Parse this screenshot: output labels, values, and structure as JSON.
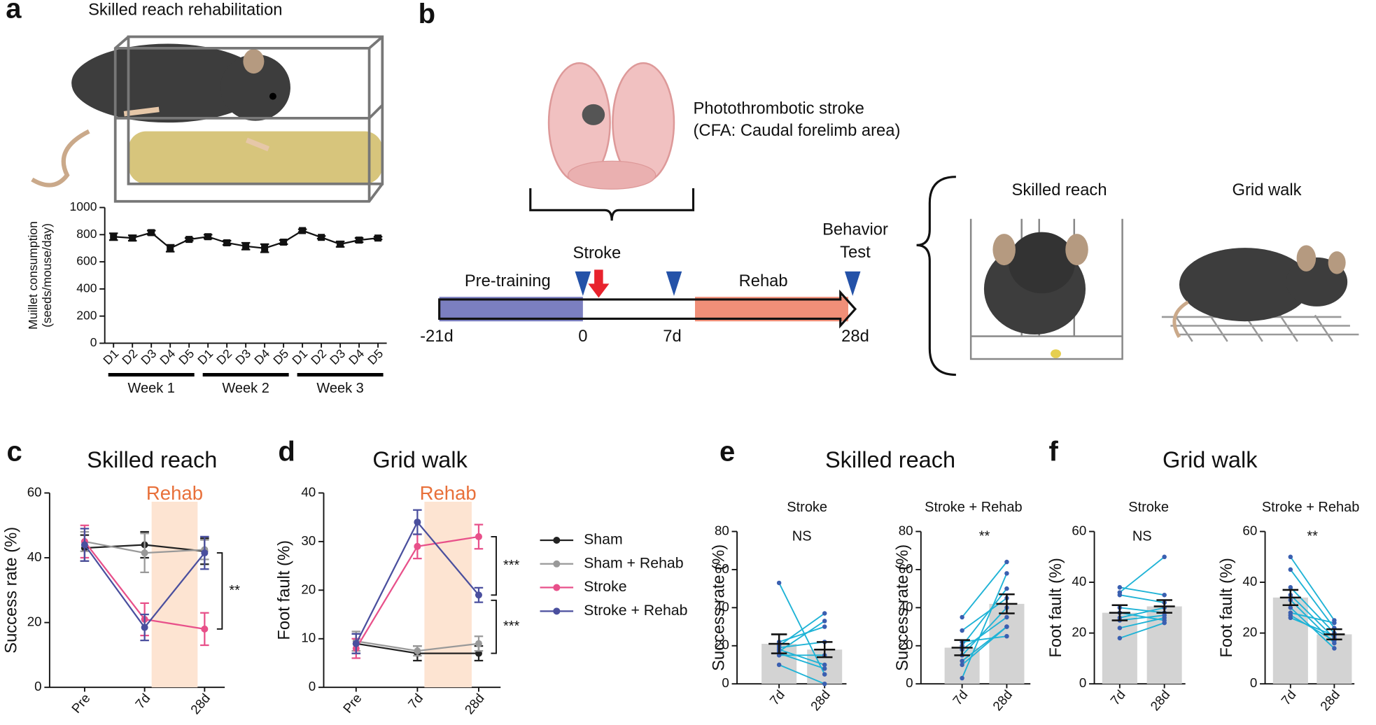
{
  "panel_labels": [
    "a",
    "b",
    "c",
    "d",
    "e",
    "f"
  ],
  "diagram": {
    "brain_label": [
      "Photothrombotic stroke",
      "(CFA: Caudal forelimb area)"
    ],
    "phases": [
      "Pre-training",
      "Rehab"
    ],
    "days": [
      "-21d",
      "0",
      "7d",
      "28d"
    ],
    "event": "Stroke",
    "test": [
      "Behavior",
      "Test"
    ],
    "tests": [
      "Skilled reach",
      "Grid walk"
    ]
  },
  "chart_data": [
    {
      "type": "line",
      "title": "Skilled reach rehabilitation",
      "ylabel": [
        "Muillet consumption",
        "(seeds/mouse/day)"
      ],
      "categories": [
        "D1",
        "D2",
        "D3",
        "D4",
        "D5",
        "D1",
        "D2",
        "D3",
        "D4",
        "D5",
        "D1",
        "D2",
        "D3",
        "D4",
        "D5"
      ],
      "groups": [
        "Week 1",
        "Week 2",
        "Week 3"
      ],
      "values": [
        785,
        775,
        815,
        700,
        765,
        785,
        740,
        715,
        700,
        745,
        830,
        780,
        730,
        760,
        775
      ],
      "errors": [
        25,
        20,
        15,
        25,
        10,
        15,
        15,
        25,
        30,
        15,
        10,
        10,
        20,
        15,
        10
      ],
      "color": "#111111",
      "marker": "square",
      "ylim": [
        0,
        1000
      ],
      "yticks": [
        0,
        200,
        400,
        600,
        800,
        1000
      ]
    },
    {
      "type": "line",
      "title": "Skilled reach",
      "ylabel": "Success rate (%)",
      "shade_label": "Rehab",
      "shade_color": "#fde4d2",
      "shade_text_color": "#e8703a",
      "categories": [
        "Pre",
        "7d",
        "28d"
      ],
      "ylim": [
        0,
        60
      ],
      "yticks": [
        0,
        20,
        40,
        60
      ],
      "series": [
        {
          "name": "Sham",
          "color": "#222222",
          "values": [
            43,
            44,
            42
          ],
          "errors": [
            4,
            4,
            4
          ]
        },
        {
          "name": "Sham + Rehab",
          "color": "#999999",
          "values": [
            45,
            41.5,
            42.5
          ],
          "errors": [
            3,
            6,
            3
          ]
        },
        {
          "name": "Stroke",
          "color": "#e8508a",
          "values": [
            45,
            21,
            18
          ],
          "errors": [
            5,
            5,
            5
          ]
        },
        {
          "name": "Stroke + Rehab",
          "color": "#4a4f9e",
          "values": [
            44,
            18.5,
            41.5
          ],
          "errors": [
            5,
            4,
            5
          ]
        }
      ],
      "annotations": [
        {
          "text": "**",
          "between": [
            "Stroke + Rehab",
            "Stroke"
          ]
        }
      ]
    },
    {
      "type": "line",
      "title": "Grid walk",
      "ylabel": "Foot fault (%)",
      "shade_label": "Rehab",
      "shade_color": "#fde4d2",
      "shade_text_color": "#e8703a",
      "categories": [
        "Pre",
        "7d",
        "28d"
      ],
      "ylim": [
        0,
        40
      ],
      "yticks": [
        0,
        10,
        20,
        30,
        40
      ],
      "legend": "right",
      "series": [
        {
          "name": "Sham",
          "color": "#222222",
          "values": [
            9,
            7,
            7
          ],
          "errors": [
            2,
            1.5,
            1.5
          ]
        },
        {
          "name": "Sham + Rehab",
          "color": "#999999",
          "values": [
            9.5,
            7.5,
            9
          ],
          "errors": [
            2,
            1,
            1.5
          ]
        },
        {
          "name": "Stroke",
          "color": "#e8508a",
          "values": [
            8,
            29,
            31
          ],
          "errors": [
            2,
            2.5,
            2.5
          ]
        },
        {
          "name": "Stroke + Rehab",
          "color": "#4a4f9e",
          "values": [
            9,
            34,
            19
          ],
          "errors": [
            2,
            2.5,
            1.5
          ]
        }
      ],
      "annotations": [
        {
          "text": "***",
          "between": [
            "Stroke",
            "Stroke + Rehab"
          ]
        },
        {
          "text": "***",
          "between": [
            "Stroke + Rehab",
            "Sham"
          ]
        }
      ]
    },
    {
      "type": "paired_bar",
      "panel_title": "Skilled reach",
      "title": "Stroke",
      "ylabel": "Success rate (%)",
      "annotation": "NS",
      "categories": [
        "7d",
        "28d"
      ],
      "values": [
        21,
        18
      ],
      "errors": [
        5,
        4
      ],
      "bar_color": "#d3d3d3",
      "pair_color": "#1fb3d6",
      "point_color": "#3a5fb0",
      "pairs": [
        [
          53,
          5
        ],
        [
          20,
          37
        ],
        [
          17,
          33
        ],
        [
          19,
          22
        ],
        [
          15,
          15
        ],
        [
          10,
          0
        ],
        [
          22,
          30
        ],
        [
          18,
          10
        ],
        [
          16,
          8
        ]
      ],
      "ylim": [
        0,
        80
      ],
      "yticks": [
        0,
        20,
        40,
        60,
        80
      ]
    },
    {
      "type": "paired_bar",
      "title": "Stroke + Rehab",
      "ylabel": "Success rate (%)",
      "annotation": "**",
      "categories": [
        "7d",
        "28d"
      ],
      "values": [
        19,
        42
      ],
      "errors": [
        4,
        5
      ],
      "bar_color": "#d3d3d3",
      "pair_color": "#1fb3d6",
      "point_color": "#3a5fb0",
      "pairs": [
        [
          35,
          64
        ],
        [
          3,
          58
        ],
        [
          20,
          50
        ],
        [
          28,
          45
        ],
        [
          15,
          40
        ],
        [
          18,
          35
        ],
        [
          10,
          30
        ],
        [
          22,
          25
        ],
        [
          12,
          30
        ]
      ],
      "ylim": [
        0,
        80
      ],
      "yticks": [
        0,
        20,
        40,
        60,
        80
      ]
    },
    {
      "type": "paired_bar",
      "panel_title": "Grid walk",
      "title": "Stroke",
      "ylabel": "Foot fault (%)",
      "annotation": "NS",
      "categories": [
        "7d",
        "28d"
      ],
      "values": [
        28,
        30.5
      ],
      "errors": [
        3,
        2.5
      ],
      "bar_color": "#d3d3d3",
      "pair_color": "#1fb3d6",
      "point_color": "#3a5fb0",
      "pairs": [
        [
          38,
          35
        ],
        [
          36,
          50
        ],
        [
          35,
          32
        ],
        [
          30,
          28
        ],
        [
          28,
          25
        ],
        [
          26,
          30
        ],
        [
          25,
          27
        ],
        [
          22,
          26
        ],
        [
          18,
          24
        ]
      ],
      "ylim": [
        0,
        60
      ],
      "yticks": [
        0,
        20,
        40,
        60
      ]
    },
    {
      "type": "paired_bar",
      "title": "Stroke + Rehab",
      "ylabel": "Foot fault (%)",
      "annotation": "**",
      "categories": [
        "7d",
        "28d"
      ],
      "values": [
        34,
        19.5
      ],
      "errors": [
        3,
        2
      ],
      "bar_color": "#d3d3d3",
      "pair_color": "#1fb3d6",
      "point_color": "#3a5fb0",
      "pairs": [
        [
          50,
          25
        ],
        [
          45,
          22
        ],
        [
          38,
          20
        ],
        [
          35,
          18
        ],
        [
          33,
          16
        ],
        [
          30,
          14
        ],
        [
          28,
          24
        ],
        [
          26,
          19
        ],
        [
          27,
          17
        ]
      ],
      "ylim": [
        0,
        60
      ],
      "yticks": [
        0,
        20,
        40,
        60
      ]
    }
  ]
}
